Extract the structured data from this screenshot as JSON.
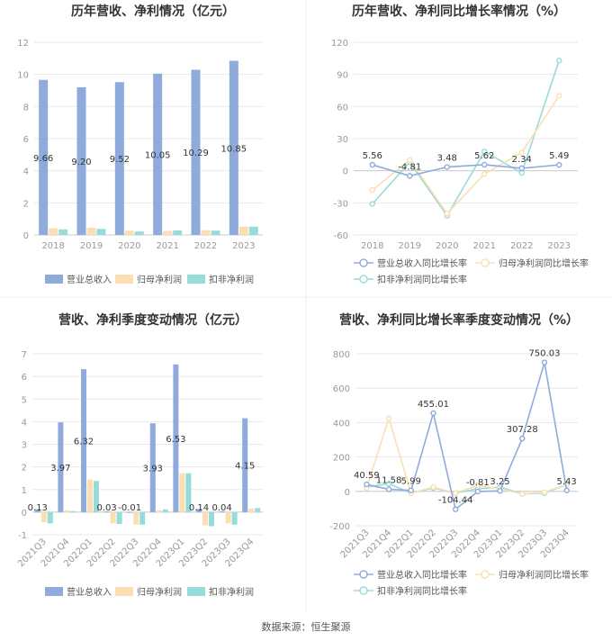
{
  "footer": {
    "source": "数据来源：恒生聚源"
  },
  "colors": {
    "revenue": "#8eabdc",
    "net_profit": "#fbdfb3",
    "deducted_profit": "#98dcd9",
    "axis_text": "#999999",
    "grid": "#e8e8e8"
  },
  "chart_data": [
    {
      "id": "annual-bar",
      "type": "bar",
      "title": "历年营收、净利情况（亿元）",
      "categories": [
        "2018",
        "2019",
        "2020",
        "2021",
        "2022",
        "2023"
      ],
      "ylim": [
        0,
        12
      ],
      "yticks": [
        0,
        2,
        4,
        6,
        8,
        10,
        12
      ],
      "grid": true,
      "legend_position": "bottom",
      "series": [
        {
          "name": "营业总收入",
          "values": [
            9.66,
            9.2,
            9.52,
            10.05,
            10.29,
            10.85
          ],
          "labels": [
            "9.66",
            "9.20",
            "9.52",
            "10.05",
            "10.29",
            "10.85"
          ]
        },
        {
          "name": "归母净利润",
          "values": [
            0.42,
            0.45,
            0.27,
            0.25,
            0.3,
            0.52
          ]
        },
        {
          "name": "扣非净利润",
          "values": [
            0.35,
            0.38,
            0.22,
            0.28,
            0.27,
            0.52
          ]
        }
      ]
    },
    {
      "id": "annual-line",
      "type": "line",
      "title": "历年营收、净利同比增长率情况（%）",
      "categories": [
        "2018",
        "2019",
        "2020",
        "2021",
        "2022",
        "2023"
      ],
      "ylim": [
        -60,
        120
      ],
      "yticks": [
        -60,
        -30,
        0,
        30,
        60,
        90,
        120
      ],
      "grid": true,
      "legend_position": "bottom",
      "series": [
        {
          "name": "营业总收入同比增长率",
          "values": [
            5.56,
            -4.81,
            3.48,
            5.62,
            2.34,
            5.49
          ],
          "labels": [
            "5.56",
            "-4.81",
            "3.48",
            "5.62",
            "2.34",
            "5.49"
          ]
        },
        {
          "name": "归母净利润同比增长率",
          "values": [
            -18,
            10,
            -40,
            -3,
            17,
            70
          ]
        },
        {
          "name": "扣非净利润同比增长率",
          "values": [
            -31,
            8,
            -42,
            18,
            -2,
            103
          ]
        }
      ]
    },
    {
      "id": "quarter-bar",
      "type": "bar",
      "title": "营收、净利季度变动情况（亿元）",
      "categories": [
        "2021Q3",
        "2021Q4",
        "2022Q1",
        "2022Q2",
        "2022Q3",
        "2022Q4",
        "2023Q1",
        "2023Q2",
        "2023Q3",
        "2023Q4"
      ],
      "ylim": [
        -1,
        7
      ],
      "yticks": [
        -1,
        0,
        1,
        2,
        3,
        4,
        5,
        6,
        7
      ],
      "grid": true,
      "legend_position": "bottom",
      "series": [
        {
          "name": "营业总收入",
          "values": [
            0.13,
            3.97,
            6.32,
            0.03,
            -0.01,
            3.93,
            6.53,
            0.14,
            0.04,
            4.15
          ],
          "labels": [
            "0.13",
            "3.97",
            "6.32",
            "0.03",
            "-0.01",
            "3.93",
            "6.53",
            "0.14",
            "0.04",
            "4.15"
          ]
        },
        {
          "name": "归母净利润",
          "values": [
            -0.45,
            0.08,
            1.45,
            -0.5,
            -0.55,
            0.08,
            1.72,
            -0.58,
            -0.5,
            0.15
          ]
        },
        {
          "name": "扣非净利润",
          "values": [
            -0.5,
            0.05,
            1.38,
            -0.52,
            -0.55,
            0.12,
            1.72,
            -0.62,
            -0.55,
            0.18
          ]
        }
      ]
    },
    {
      "id": "quarter-line",
      "type": "line",
      "title": "营收、净利同比增长率季度变动情况（%）",
      "categories": [
        "2021Q3",
        "2021Q4",
        "2022Q1",
        "2022Q2",
        "2022Q3",
        "2022Q4",
        "2023Q1",
        "2023Q2",
        "2023Q3",
        "2023Q4"
      ],
      "ylim": [
        -200,
        800
      ],
      "yticks": [
        -200,
        0,
        200,
        400,
        600,
        800
      ],
      "grid": true,
      "legend_position": "bottom",
      "series": [
        {
          "name": "营业总收入同比增长率",
          "values": [
            40.59,
            11.58,
            5.99,
            455.01,
            -104.44,
            -0.81,
            3.25,
            307.28,
            750.03,
            5.43
          ],
          "labels": [
            "40.59",
            "11.58",
            "5.99",
            "455.01",
            "-104.44",
            "-0.81",
            "3.25",
            "307.28",
            "750.03",
            "5.43"
          ]
        },
        {
          "name": "归母净利润同比增长率",
          "values": [
            20,
            425,
            -10,
            25,
            -10,
            35,
            15,
            -15,
            -5,
            40
          ]
        },
        {
          "name": "扣非净利润同比增长率",
          "values": [
            25,
            45,
            -10,
            20,
            -10,
            15,
            25,
            -15,
            -10,
            40
          ]
        }
      ]
    }
  ]
}
